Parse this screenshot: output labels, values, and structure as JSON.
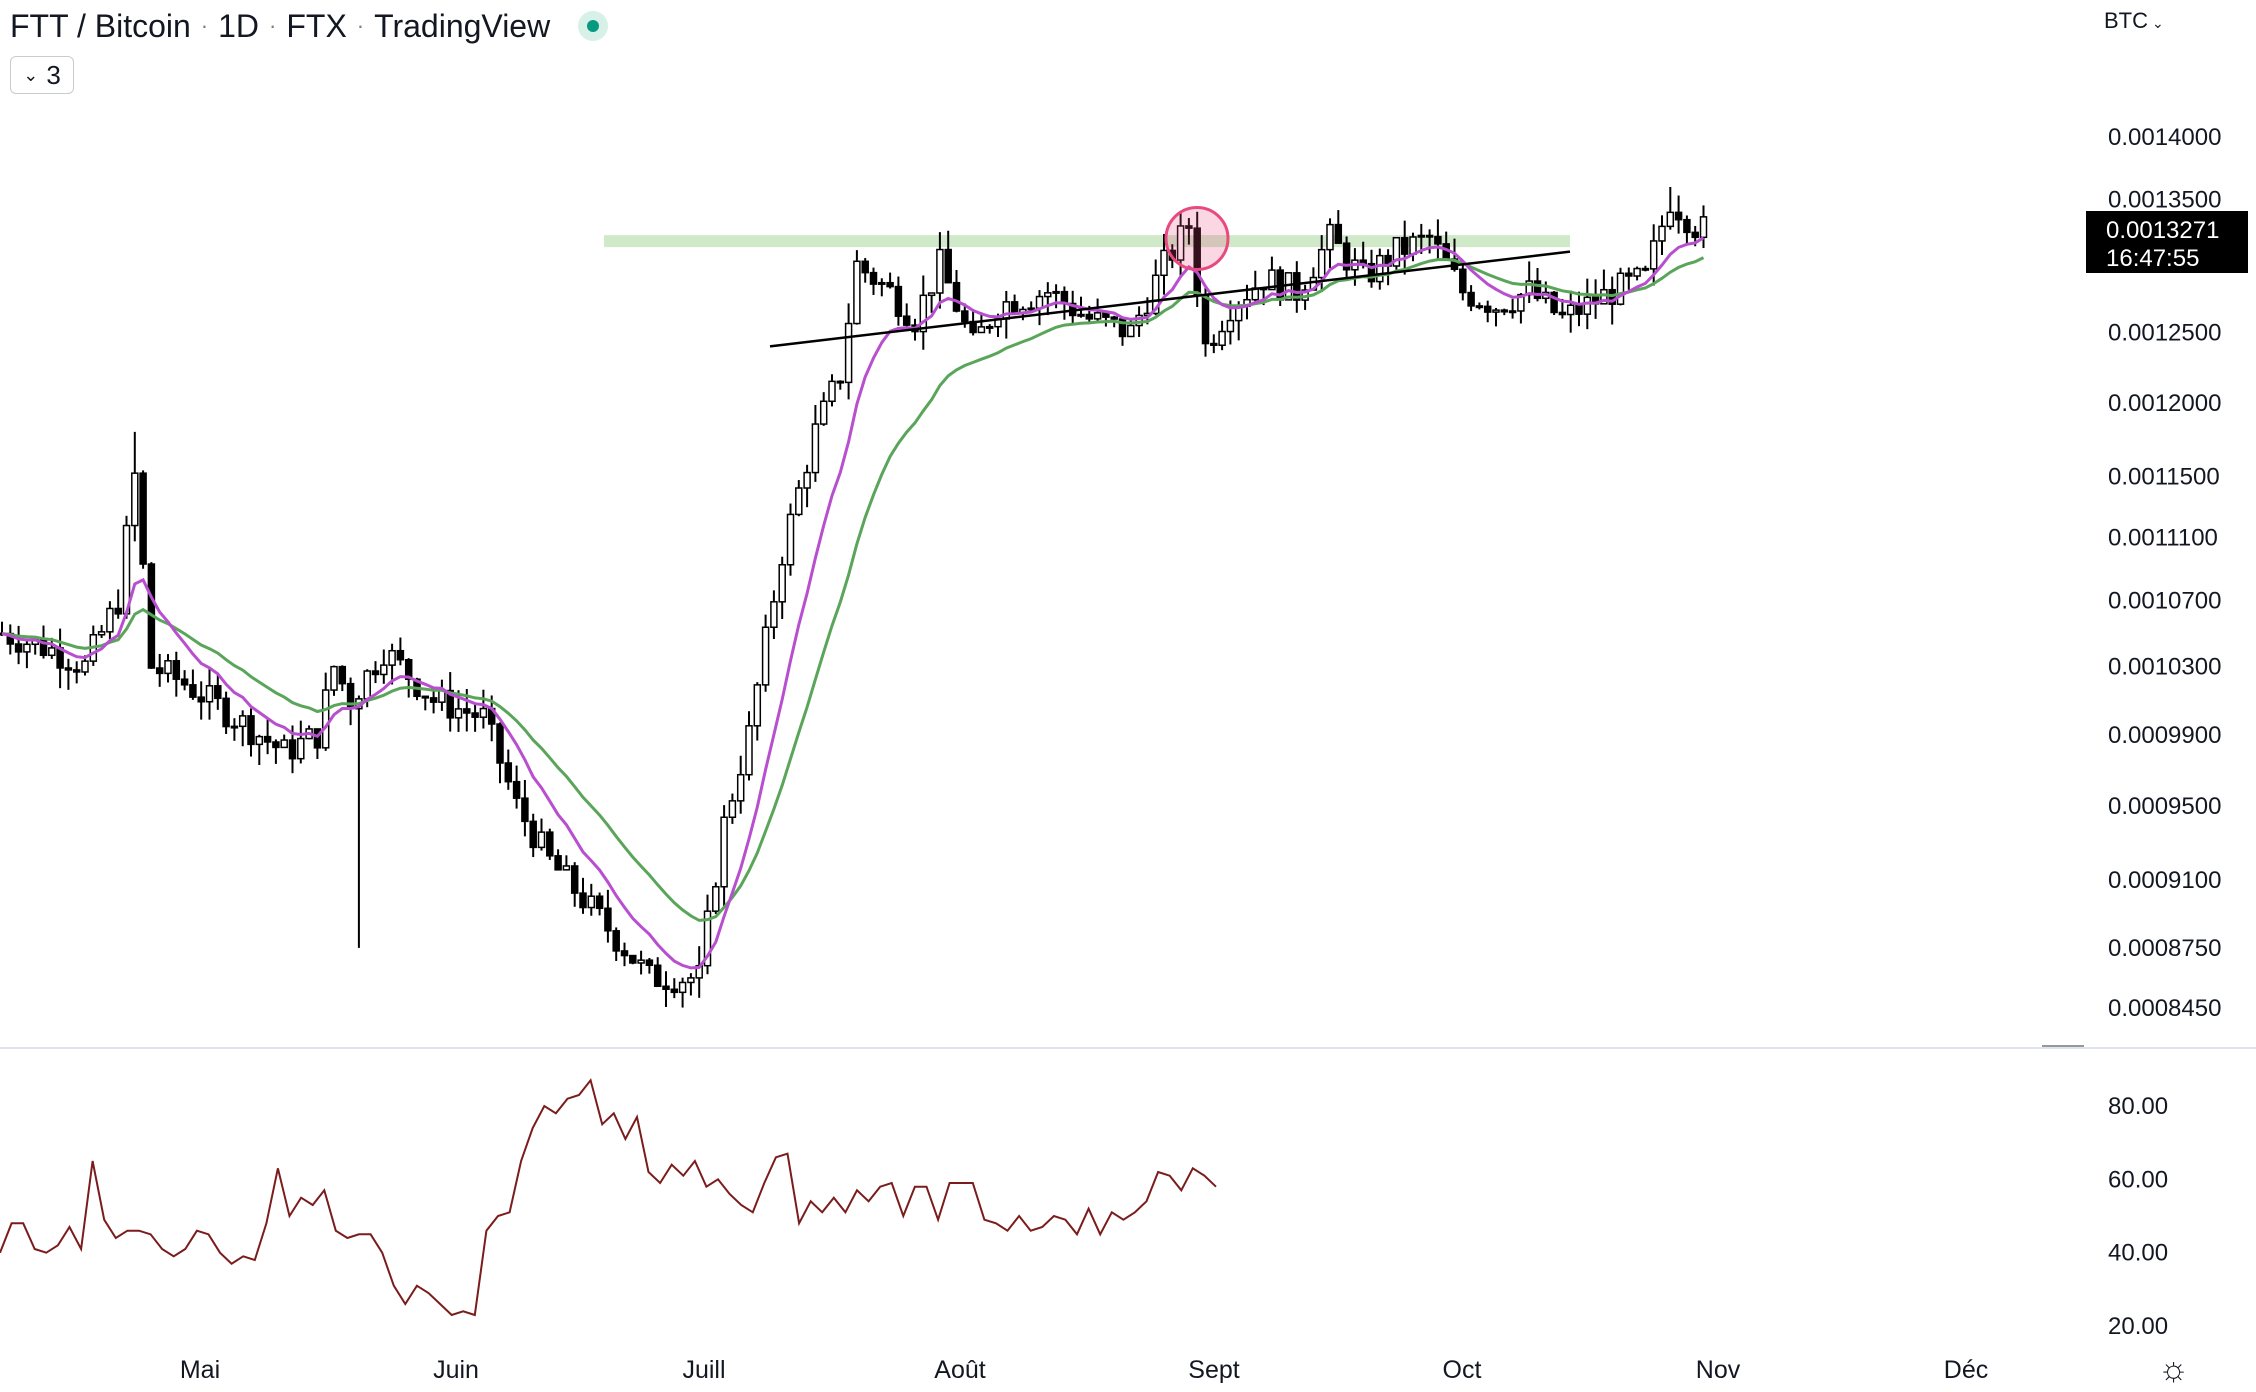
{
  "header": {
    "pair": "FTT / Bitcoin",
    "interval": "1D",
    "exchange": "FTX",
    "provider": "TradingView",
    "separator": "·"
  },
  "indicators_toggle": {
    "count": "3",
    "icon": "chevron-down-icon"
  },
  "currency_selector": {
    "label": "BTC",
    "icon": "chevron-down-icon"
  },
  "price_marker": {
    "price": "0.0013271",
    "countdown": "16:47:55"
  },
  "settings": {
    "icon": "gear-icon"
  },
  "colors": {
    "candle": "#000000",
    "ema_fast": "#b84fcf",
    "ema_slow": "#5aa55a",
    "resistance_zone": "#cfe9c9",
    "rsi": "#7b1c1c",
    "highlight": "#e84a7f"
  },
  "chart_data": [
    {
      "type": "candlestick",
      "title": "",
      "y_scale": "log",
      "ylim": [
        0.00082,
        0.00147
      ],
      "y_ticks": [
        "0.0014000",
        "0.0013500",
        "0.0012500",
        "0.0012000",
        "0.0011500",
        "0.0011100",
        "0.0010700",
        "0.0010300",
        "0.0009900",
        "0.0009500",
        "0.0009100",
        "0.0008750",
        "0.0008450"
      ],
      "x_ticks": [
        "Mai",
        "Juin",
        "Juill",
        "Août",
        "Sept",
        "Oct",
        "Nov",
        "Déc"
      ],
      "last_price": 0.0013271,
      "approx_closes": {
        "mid_april": 0.00105,
        "late_april_spike_high": 0.00118,
        "early_may_low": 0.00098,
        "late_may_bottom": 0.00086,
        "mid_june_rally": 0.00126,
        "july_range": [
          0.00125,
          0.00133
        ],
        "august_range": [
          0.00126,
          0.00132
        ],
        "end_august_high": 0.00136
      },
      "series": [
        {
          "name": "",
          "kind": "EMA fast",
          "color": "#b84fcf"
        },
        {
          "name": "",
          "kind": "EMA slow",
          "color": "#5aa55a"
        }
      ],
      "annotations": [
        {
          "kind": "horizontal-zone",
          "level": 0.001318
        },
        {
          "kind": "ascending-trendline",
          "from": 0.00124,
          "to": 0.00131
        },
        {
          "kind": "circle-highlight",
          "level": 0.00132
        }
      ]
    },
    {
      "type": "line",
      "title": "",
      "series_name": "",
      "ylim": [
        15,
        92
      ],
      "y_ticks": [
        "80.00",
        "60.00",
        "40.00",
        "20.00"
      ],
      "values": [
        40,
        48,
        48,
        41,
        40,
        42,
        47,
        41,
        65,
        49,
        44,
        46,
        46,
        45,
        41,
        39,
        41,
        46,
        45,
        40,
        37,
        39,
        38,
        48,
        63,
        50,
        55,
        53,
        57,
        46,
        44,
        45,
        45,
        40,
        31,
        26,
        31,
        29,
        26,
        23,
        24,
        23,
        46,
        50,
        51,
        65,
        74,
        80,
        78,
        82,
        83,
        87,
        75,
        78,
        71,
        77,
        62,
        59,
        64,
        61,
        65,
        58,
        60,
        56,
        53,
        51,
        59,
        66,
        67,
        48,
        54,
        51,
        55,
        51,
        57,
        54,
        58,
        59,
        50,
        58,
        58,
        49,
        59,
        59,
        59,
        49,
        48,
        46,
        50,
        46,
        47,
        50,
        49,
        45,
        52,
        45,
        51,
        49,
        51,
        54,
        62,
        61,
        57,
        63,
        61,
        58
      ]
    }
  ]
}
